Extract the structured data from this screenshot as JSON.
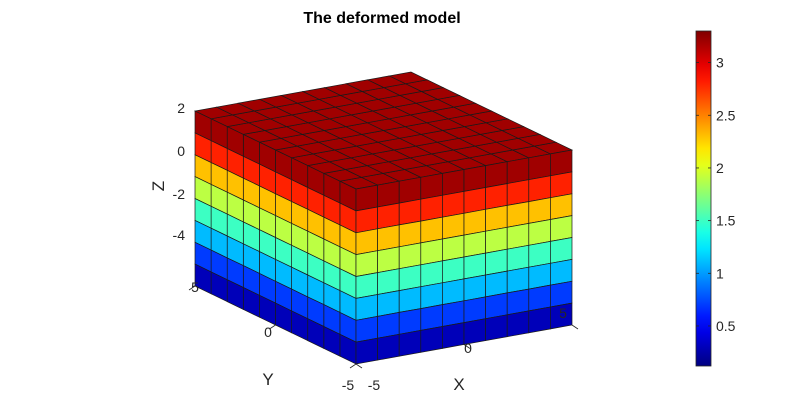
{
  "chart_data": {
    "type": "surface3d",
    "title": "The deformed model",
    "xlabel": "X",
    "ylabel": "Y",
    "zlabel": "Z",
    "x_ticks": [
      "-5",
      "0",
      "5"
    ],
    "y_ticks": [
      "-5",
      "0",
      "5"
    ],
    "z_ticks": [
      "2",
      "0",
      "-2",
      "-4"
    ],
    "grid": false,
    "legend": "none",
    "colormap": "jet",
    "colorbar": {
      "placement": "right",
      "min": 0.12,
      "max": 3.3,
      "ticks": [
        "0.5",
        "1",
        "1.5",
        "2",
        "2.5",
        "3"
      ],
      "tick_values": [
        0.5,
        1,
        1.5,
        2,
        2.5,
        3
      ]
    },
    "mesh": {
      "elements_x": 10,
      "elements_y": 10,
      "elements_z": 8,
      "layer_values_top_to_bottom": [
        3.2,
        2.8,
        2.3,
        1.9,
        1.5,
        1.1,
        0.7,
        0.3
      ]
    }
  }
}
